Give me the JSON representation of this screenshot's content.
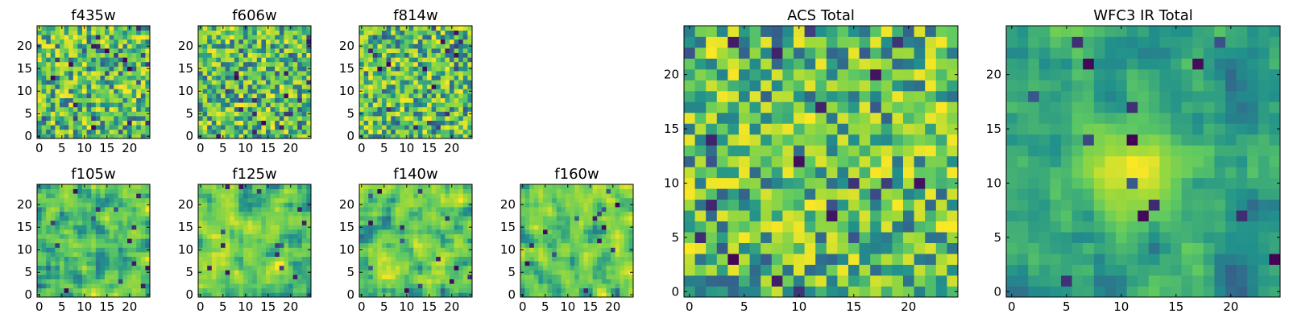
{
  "palette": [
    "#440154",
    "#3b528b",
    "#21918c",
    "#5ec962",
    "#a0da39",
    "#fde725"
  ],
  "chart_data": [
    {
      "type": "heatmap",
      "title": "f435w",
      "grid": [
        25,
        25
      ],
      "xlim": [
        -0.5,
        24.5
      ],
      "ylim": [
        -0.5,
        24.5
      ],
      "xticks": [
        "0",
        "5",
        "10",
        "15",
        "20"
      ],
      "yticks": [
        "0",
        "5",
        "10",
        "15",
        "20"
      ],
      "texture": "noisy",
      "seed": 11
    },
    {
      "type": "heatmap",
      "title": "f606w",
      "grid": [
        25,
        25
      ],
      "xlim": [
        -0.5,
        24.5
      ],
      "ylim": [
        -0.5,
        24.5
      ],
      "xticks": [
        "0",
        "5",
        "10",
        "15",
        "20"
      ],
      "yticks": [
        "0",
        "5",
        "10",
        "15",
        "20"
      ],
      "texture": "noisy",
      "seed": 23
    },
    {
      "type": "heatmap",
      "title": "f814w",
      "grid": [
        25,
        25
      ],
      "xlim": [
        -0.5,
        24.5
      ],
      "ylim": [
        -0.5,
        24.5
      ],
      "xticks": [
        "0",
        "5",
        "10",
        "15",
        "20"
      ],
      "yticks": [
        "0",
        "5",
        "10",
        "15",
        "20"
      ],
      "texture": "noisy",
      "seed": 37
    },
    {
      "type": "heatmap",
      "title": "f105w",
      "grid": [
        25,
        25
      ],
      "xlim": [
        -0.5,
        24.5
      ],
      "ylim": [
        -0.5,
        24.5
      ],
      "xticks": [
        "0",
        "5",
        "10",
        "15",
        "20"
      ],
      "yticks": [
        "0",
        "5",
        "10",
        "15",
        "20"
      ],
      "texture": "smooth",
      "seed": 41
    },
    {
      "type": "heatmap",
      "title": "f125w",
      "grid": [
        25,
        25
      ],
      "xlim": [
        -0.5,
        24.5
      ],
      "ylim": [
        -0.5,
        24.5
      ],
      "xticks": [
        "0",
        "5",
        "10",
        "15",
        "20"
      ],
      "yticks": [
        "0",
        "5",
        "10",
        "15",
        "20"
      ],
      "texture": "smooth",
      "seed": 53
    },
    {
      "type": "heatmap",
      "title": "f140w",
      "grid": [
        25,
        25
      ],
      "xlim": [
        -0.5,
        24.5
      ],
      "ylim": [
        -0.5,
        24.5
      ],
      "xticks": [
        "0",
        "5",
        "10",
        "15",
        "20"
      ],
      "yticks": [
        "0",
        "5",
        "10",
        "15",
        "20"
      ],
      "texture": "smooth",
      "seed": 67
    },
    {
      "type": "heatmap",
      "title": "f160w",
      "grid": [
        25,
        25
      ],
      "xlim": [
        -0.5,
        24.5
      ],
      "ylim": [
        -0.5,
        24.5
      ],
      "xticks": [
        "0",
        "5",
        "10",
        "15",
        "20"
      ],
      "yticks": [
        "0",
        "5",
        "10",
        "15",
        "20"
      ],
      "texture": "smooth",
      "seed": 79
    },
    {
      "type": "heatmap",
      "title": "ACS Total",
      "grid": [
        25,
        25
      ],
      "xlim": [
        -0.5,
        24.5
      ],
      "ylim": [
        -0.5,
        24.5
      ],
      "xticks": [
        "0",
        "5",
        "10",
        "15",
        "20"
      ],
      "yticks": [
        "0",
        "5",
        "10",
        "15",
        "20"
      ],
      "texture": "noisy",
      "seed": 97
    },
    {
      "type": "heatmap",
      "title": "WFC3 IR Total",
      "grid": [
        25,
        25
      ],
      "xlim": [
        -0.5,
        24.5
      ],
      "ylim": [
        -0.5,
        24.5
      ],
      "xticks": [
        "0",
        "5",
        "10",
        "15",
        "20"
      ],
      "yticks": [
        "0",
        "5",
        "10",
        "15",
        "20"
      ],
      "texture": "blob",
      "seed": 131
    }
  ]
}
